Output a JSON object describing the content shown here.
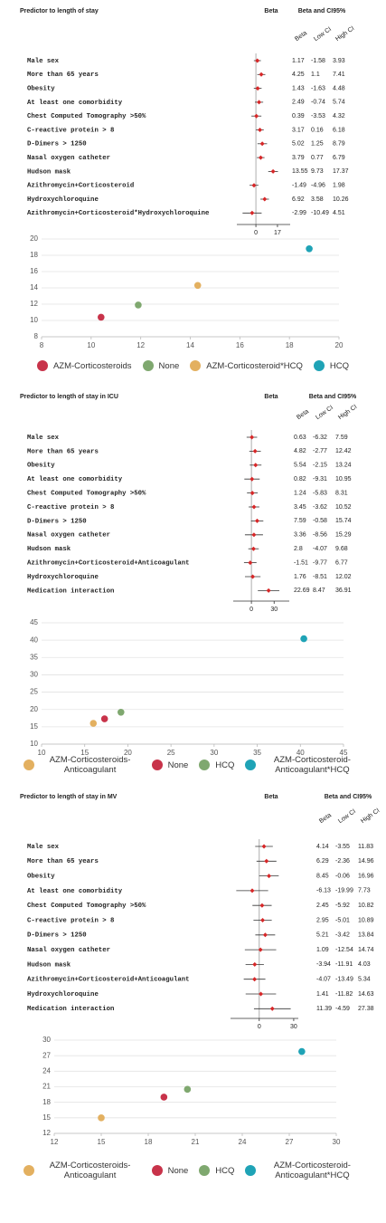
{
  "chart_data": [
    {
      "type": "forest",
      "title": "Predictor to length of stay",
      "beta_header": "Beta",
      "ci_header": "Beta and CI95%",
      "column_headers": [
        "Beta",
        "Low CI",
        "High CI"
      ],
      "categories": [
        "Male sex",
        "More than 65 years",
        "Obesity",
        "At least one comorbidity",
        "Chest Computed Tomography >50%",
        "C-reactive protein > 8",
        "D-Dimers > 1250",
        "Nasal oxygen catheter",
        "Hudson mask",
        "Azithromycin+Corticosteroid",
        "Hydroxychloroquine",
        "Azithromycin+Corticosteroid*Hydroxychloroquine"
      ],
      "values": [
        1.17,
        4.25,
        1.43,
        2.49,
        0.39,
        3.17,
        5.02,
        3.79,
        13.55,
        -1.49,
        6.92,
        -2.99
      ],
      "low": [
        -1.58,
        1.1,
        -1.63,
        -0.74,
        -3.53,
        0.16,
        1.25,
        0.77,
        9.73,
        -4.96,
        3.58,
        -10.49
      ],
      "high": [
        3.93,
        7.41,
        4.48,
        5.74,
        4.32,
        6.18,
        8.79,
        6.79,
        17.37,
        1.98,
        10.26,
        4.51
      ],
      "xlim": [
        -15,
        27
      ],
      "xticks": [
        0,
        17
      ],
      "color": "#d62728"
    },
    {
      "type": "scatter",
      "xlim": [
        8,
        20
      ],
      "ylim": [
        8,
        20
      ],
      "xticks": [
        8,
        10,
        12,
        14,
        16,
        18,
        20
      ],
      "yticks": [
        8,
        10,
        12,
        14,
        16,
        18,
        20
      ],
      "grid": true,
      "series": [
        {
          "name": "AZM-Corticosteroids",
          "color": "#c8334a",
          "x": [
            10.4
          ],
          "values": [
            10.4
          ]
        },
        {
          "name": "None",
          "color": "#7fa86f",
          "x": [
            11.9
          ],
          "values": [
            11.9
          ]
        },
        {
          "name": "AZM-Corticosteroid*HCQ",
          "color": "#e3b060",
          "x": [
            14.3
          ],
          "values": [
            14.3
          ]
        },
        {
          "name": "HCQ",
          "color": "#1fa3b6",
          "x": [
            18.8
          ],
          "values": [
            18.8
          ]
        }
      ]
    },
    {
      "type": "forest",
      "title": "Predictor to length of stay in ICU",
      "beta_header": "Beta",
      "ci_header": "Beta and CI95%",
      "column_headers": [
        "Beta",
        "Low CI",
        "High CI"
      ],
      "categories": [
        "Male sex",
        "More than 65 years",
        "Obesity",
        "At least one comorbidity",
        "Chest Computed Tomography >50%",
        "C-reactive protein > 8",
        "D-Dimers > 1250",
        "Nasal oxygen catheter",
        "Hudson mask",
        "Azithromycin+Corticosteroid+Anticoagulant",
        "Hydroxychloroquine",
        "Medication interaction"
      ],
      "values": [
        0.63,
        4.82,
        5.54,
        0.82,
        1.24,
        3.45,
        7.59,
        3.36,
        2.8,
        -1.51,
        1.76,
        22.69
      ],
      "low": [
        -6.32,
        -2.77,
        -2.15,
        -9.31,
        -5.83,
        -3.62,
        -0.58,
        -8.56,
        -4.07,
        -9.77,
        -8.51,
        8.47
      ],
      "high": [
        7.59,
        12.42,
        13.24,
        10.95,
        8.31,
        10.52,
        15.74,
        15.29,
        9.68,
        6.77,
        12.02,
        36.91
      ],
      "xlim": [
        -24,
        50
      ],
      "xticks": [
        0,
        30
      ],
      "color": "#d62728"
    },
    {
      "type": "scatter",
      "xlim": [
        10,
        45
      ],
      "ylim": [
        10,
        45
      ],
      "xticks": [
        10,
        15,
        20,
        25,
        30,
        35,
        40,
        45
      ],
      "yticks": [
        10,
        15,
        20,
        25,
        30,
        35,
        40,
        45
      ],
      "grid": true,
      "series": [
        {
          "name": "AZM-Corticosteroids-Anticoagulant",
          "color": "#e3b060",
          "x": [
            16
          ],
          "values": [
            16
          ]
        },
        {
          "name": "None",
          "color": "#c8334a",
          "x": [
            17.3
          ],
          "values": [
            17.3
          ]
        },
        {
          "name": "HCQ",
          "color": "#7fa86f",
          "x": [
            19.2
          ],
          "values": [
            19.2
          ]
        },
        {
          "name": "AZM-Corticosteroid-Anticoagulant*HCQ",
          "color": "#1fa3b6",
          "x": [
            40.4
          ],
          "values": [
            40.4
          ]
        }
      ]
    },
    {
      "type": "forest",
      "title": "Predictor to length of stay in MV",
      "beta_header": "Beta",
      "ci_header": "Beta and CI95%",
      "column_headers": [
        "Beta",
        "Low CI",
        "High CI"
      ],
      "categories": [
        "Male sex",
        "More than 65 years",
        "Obesity",
        "At least one comorbidity",
        "Chest Computed Tomography >50%",
        "C-reactive protein > 8",
        "D-Dimers > 1250",
        "Nasal oxygen catheter",
        "Hudson mask",
        "Azithromycin+Corticosteroid+Anticoagulant",
        "Hydroxychloroquine",
        "Medication interaction"
      ],
      "values": [
        4.14,
        6.29,
        8.45,
        -6.13,
        2.45,
        2.95,
        5.21,
        1.09,
        -3.94,
        -4.07,
        1.41,
        11.39
      ],
      "low": [
        -3.55,
        -2.36,
        -0.06,
        -19.99,
        -5.92,
        -5.01,
        -3.42,
        -12.54,
        -11.91,
        -13.49,
        -11.82,
        -4.59
      ],
      "high": [
        11.83,
        14.96,
        16.96,
        7.73,
        10.82,
        10.89,
        13.84,
        14.74,
        4.03,
        5.34,
        14.63,
        27.38
      ],
      "xlim": [
        -25,
        34
      ],
      "xticks": [
        0,
        30
      ],
      "color": "#d62728"
    },
    {
      "type": "scatter",
      "xlim": [
        12,
        30
      ],
      "ylim": [
        12,
        30
      ],
      "xticks": [
        12,
        15,
        18,
        21,
        24,
        27,
        30
      ],
      "yticks": [
        12,
        15,
        18,
        21,
        24,
        27,
        30
      ],
      "grid": true,
      "series": [
        {
          "name": "AZM-Corticosteroids-Anticoagulant",
          "color": "#e3b060",
          "x": [
            15
          ],
          "values": [
            15
          ]
        },
        {
          "name": "None",
          "color": "#c8334a",
          "x": [
            19
          ],
          "values": [
            19
          ]
        },
        {
          "name": "HCQ",
          "color": "#7fa86f",
          "x": [
            20.5
          ],
          "values": [
            20.5
          ]
        },
        {
          "name": "AZM-Corticosteroid-Anticoagulant*HCQ",
          "color": "#1fa3b6",
          "x": [
            27.8
          ],
          "values": [
            27.8
          ]
        }
      ]
    }
  ]
}
